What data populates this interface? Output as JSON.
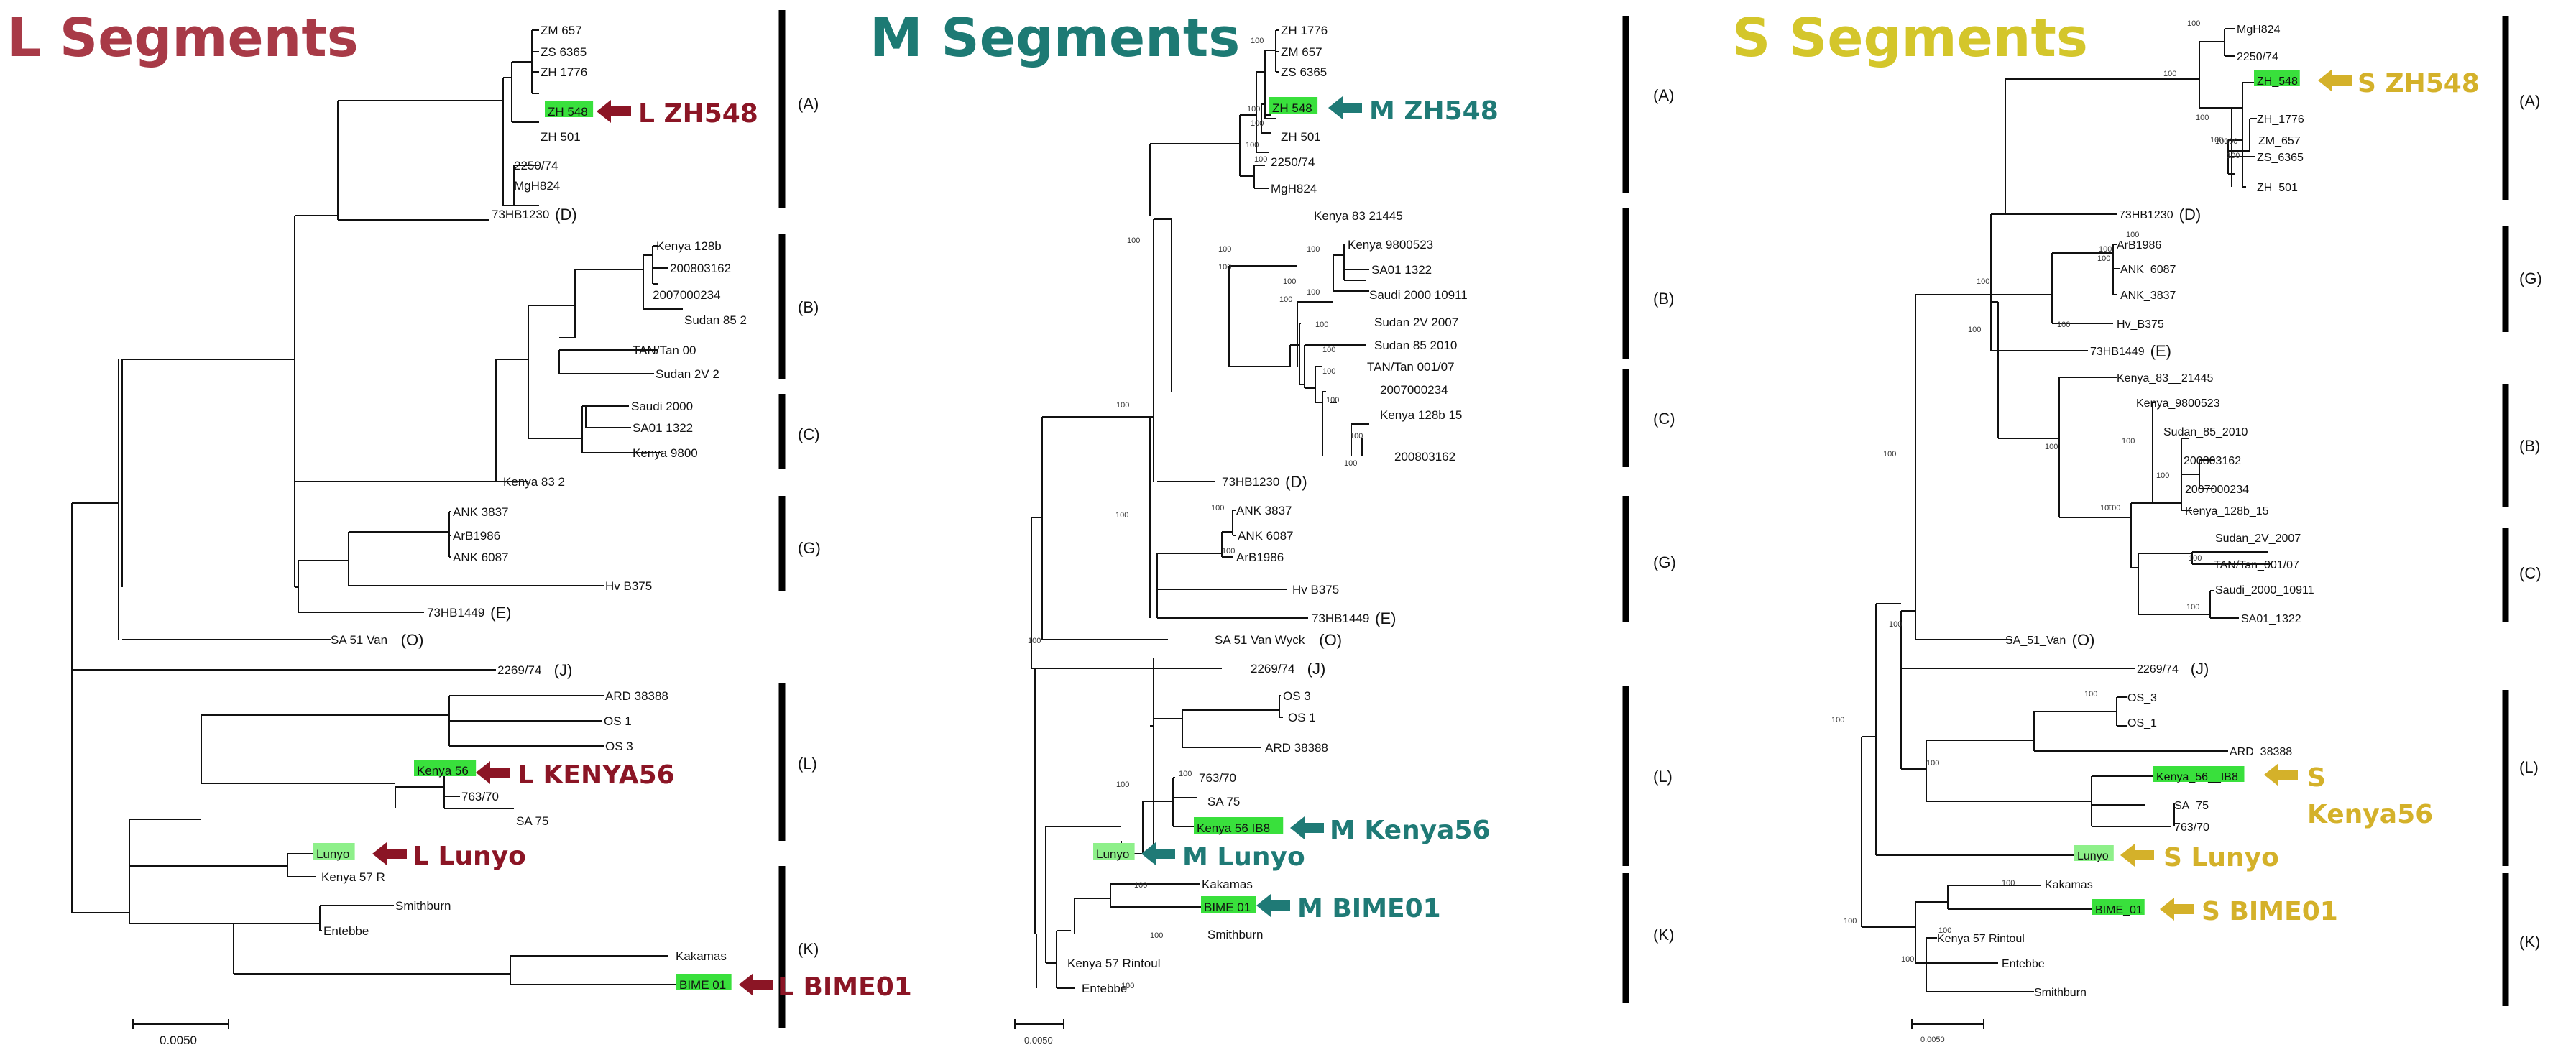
{
  "colors": {
    "L": "#a83a47",
    "M": "#1d7a74",
    "S": "#d4c62b",
    "arrowL": "#8b1525",
    "arrowM": "#1f7a76",
    "arrowS": "#d4b12a",
    "highlight": "#39e03c",
    "highlightLight": "#8ef08a",
    "bar": "#000000"
  },
  "panels": [
    {
      "id": "L",
      "title": "L Segments",
      "scale": "0.0050",
      "leaves": [
        {
          "label": "ZM 657"
        },
        {
          "label": "ZS 6365"
        },
        {
          "label": "ZH 1776"
        },
        {
          "label": "ZH 548"
        },
        {
          "label": "ZH 501"
        },
        {
          "label": "2250/74"
        },
        {
          "label": "MgH824"
        },
        {
          "label": "73HB1230",
          "tag": "(D)"
        },
        {
          "label": "Kenya 128b"
        },
        {
          "label": "200803162"
        },
        {
          "label": "2007000234"
        },
        {
          "label": "Sudan 85 2"
        },
        {
          "label": "TAN/Tan 00"
        },
        {
          "label": "Sudan 2V 2"
        },
        {
          "label": "Saudi 2000"
        },
        {
          "label": "SA01 1322"
        },
        {
          "label": "Kenya 9800"
        },
        {
          "label": "Kenya 83 2"
        },
        {
          "label": "ANK 3837"
        },
        {
          "label": "ArB1986"
        },
        {
          "label": "ANK 6087"
        },
        {
          "label": "Hv B375"
        },
        {
          "label": "73HB1449",
          "tag": "(E)"
        },
        {
          "label": "SA 51 Van",
          "tag": "(O)"
        },
        {
          "label": "2269/74",
          "tag": "(J)"
        },
        {
          "label": "ARD 38388"
        },
        {
          "label": "OS 1"
        },
        {
          "label": "OS 3"
        },
        {
          "label": "Kenya 56"
        },
        {
          "label": "763/70"
        },
        {
          "label": "SA 75"
        },
        {
          "label": "Lunyo"
        },
        {
          "label": "Kenya 57 R"
        },
        {
          "label": "Smithburn"
        },
        {
          "label": "Entebbe"
        },
        {
          "label": "Kakamas"
        },
        {
          "label": "BIME 01"
        }
      ],
      "clades": [
        "(A)",
        "(B)",
        "(C)",
        "(G)",
        "(L)",
        "(K)"
      ],
      "callouts": [
        "L ZH548",
        "L KENYA56",
        "L Lunyo",
        "L BIME01"
      ],
      "bootstraps": []
    },
    {
      "id": "M",
      "title": "M Segments",
      "scale": "0.0050",
      "leaves": [
        {
          "label": "ZH 1776"
        },
        {
          "label": "ZM 657"
        },
        {
          "label": "ZS 6365"
        },
        {
          "label": "ZH 548"
        },
        {
          "label": "ZH 501"
        },
        {
          "label": "2250/74"
        },
        {
          "label": "MgH824"
        },
        {
          "label": "Kenya 83 21445"
        },
        {
          "label": "Kenya 9800523"
        },
        {
          "label": "SA01 1322"
        },
        {
          "label": "Saudi 2000 10911"
        },
        {
          "label": "Sudan 2V 2007"
        },
        {
          "label": "Sudan 85 2010"
        },
        {
          "label": "TAN/Tan 001/07"
        },
        {
          "label": "2007000234"
        },
        {
          "label": "Kenya 128b 15"
        },
        {
          "label": "200803162"
        },
        {
          "label": "73HB1230",
          "tag": "(D)"
        },
        {
          "label": "ANK 3837"
        },
        {
          "label": "ANK 6087"
        },
        {
          "label": "ArB1986"
        },
        {
          "label": "Hv B375"
        },
        {
          "label": "73HB1449",
          "tag": "(E)"
        },
        {
          "label": "SA 51 Van Wyck",
          "tag": "(O)"
        },
        {
          "label": "2269/74",
          "tag": "(J)"
        },
        {
          "label": "OS 3"
        },
        {
          "label": "OS 1"
        },
        {
          "label": "ARD 38388"
        },
        {
          "label": "763/70"
        },
        {
          "label": "SA 75"
        },
        {
          "label": "Kenya 56 IB8"
        },
        {
          "label": "Lunyo"
        },
        {
          "label": "Kakamas"
        },
        {
          "label": "BIME 01"
        },
        {
          "label": "Smithburn"
        },
        {
          "label": "Kenya 57 Rintoul"
        },
        {
          "label": "Entebbe"
        }
      ],
      "clades": [
        "(A)",
        "(B)",
        "(C)",
        "(G)",
        "(L)",
        "(K)"
      ],
      "callouts": [
        "M ZH548",
        "M Kenya56",
        "M Lunyo",
        "M BIME01"
      ],
      "bootstraps": [
        "100",
        "100",
        "100",
        "100",
        "100",
        "100",
        "100",
        "100",
        "100",
        "100",
        "100",
        "100",
        "100",
        "100",
        "100",
        "100",
        "100",
        "100",
        "100",
        "100",
        "100",
        "100",
        "100",
        "100",
        "100",
        "100",
        "100",
        "100"
      ]
    },
    {
      "id": "S",
      "title": "S Segments",
      "scale": "0.0050",
      "leaves": [
        {
          "label": "MgH824"
        },
        {
          "label": "2250/74"
        },
        {
          "label": "ZH_548"
        },
        {
          "label": "ZH_1776"
        },
        {
          "label": "ZM_657"
        },
        {
          "label": "ZS_6365"
        },
        {
          "label": "ZH_501"
        },
        {
          "label": "73HB1230",
          "tag": "(D)"
        },
        {
          "label": "ArB1986"
        },
        {
          "label": "ANK_6087"
        },
        {
          "label": "ANK_3837"
        },
        {
          "label": "Hv_B375"
        },
        {
          "label": "73HB1449",
          "tag": "(E)"
        },
        {
          "label": "Kenya_83__21445"
        },
        {
          "label": "Kenya_9800523"
        },
        {
          "label": "Sudan_85_2010"
        },
        {
          "label": "200803162"
        },
        {
          "label": "2007000234"
        },
        {
          "label": "Kenya_128b_15"
        },
        {
          "label": "Sudan_2V_2007"
        },
        {
          "label": "TAN/Tan_001/07"
        },
        {
          "label": "Saudi_2000_10911"
        },
        {
          "label": "SA01_1322"
        },
        {
          "label": "SA_51_Van",
          "tag": "(O)"
        },
        {
          "label": "2269/74",
          "tag": "(J)"
        },
        {
          "label": "OS_3"
        },
        {
          "label": "OS_1"
        },
        {
          "label": "ARD_38388"
        },
        {
          "label": "Kenya_56__IB8"
        },
        {
          "label": "SA_75"
        },
        {
          "label": "763/70"
        },
        {
          "label": "Lunyo"
        },
        {
          "label": "Kakamas"
        },
        {
          "label": "BIME_01"
        },
        {
          "label": "Kenya 57 Rintoul"
        },
        {
          "label": "Entebbe"
        },
        {
          "label": "Smithburn"
        }
      ],
      "clades": [
        "(A)",
        "(G)",
        "(B)",
        "(C)",
        "(L)",
        "(K)"
      ],
      "callouts": [
        "S ZH548",
        "S",
        "Kenya56",
        "S Lunyo",
        "S BIME01"
      ],
      "bootstraps": [
        "100",
        "100",
        "100",
        "100",
        "100",
        "100",
        "100",
        "100",
        "100",
        "100",
        "100",
        "100",
        "100",
        "100",
        "100",
        "100",
        "100",
        "100",
        "100",
        "100",
        "100",
        "100",
        "100",
        "100",
        "100",
        "100",
        "100",
        "100",
        "100"
      ]
    }
  ]
}
